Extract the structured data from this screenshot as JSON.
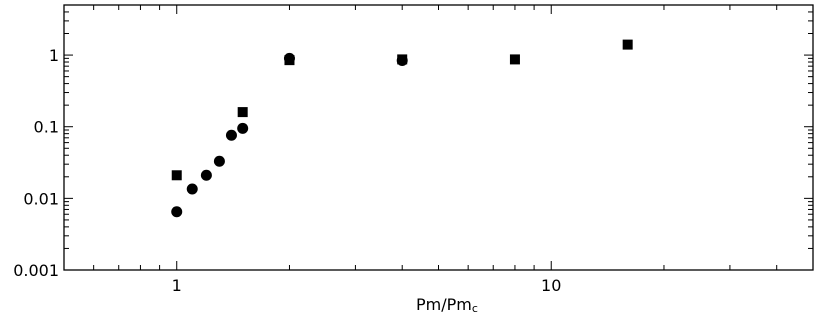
{
  "chart_data": {
    "type": "scatter",
    "title": "",
    "xlabel": {
      "main": "Pm/Pm",
      "sub": "c"
    },
    "ylabel": "",
    "xscale": "log",
    "yscale": "log",
    "xlim": [
      0.5,
      50
    ],
    "ylim": [
      0.001,
      5
    ],
    "x_ticks": [
      1,
      10
    ],
    "x_tick_labels": [
      "1",
      "10"
    ],
    "y_ticks": [
      0.001,
      0.01,
      0.1,
      1
    ],
    "y_tick_labels": [
      "0.001",
      "0.01",
      "0.1",
      "1"
    ],
    "grid": false,
    "series": [
      {
        "marker": "square",
        "color": "#000000",
        "points": [
          {
            "x": 1.0,
            "y": 0.021
          },
          {
            "x": 1.5,
            "y": 0.16
          },
          {
            "x": 2.0,
            "y": 0.85
          },
          {
            "x": 4.0,
            "y": 0.87
          },
          {
            "x": 8.0,
            "y": 0.87
          },
          {
            "x": 16.0,
            "y": 1.4
          }
        ]
      },
      {
        "marker": "circle",
        "color": "#000000",
        "points": [
          {
            "x": 1.0,
            "y": 0.0065
          },
          {
            "x": 1.1,
            "y": 0.0135
          },
          {
            "x": 1.2,
            "y": 0.021
          },
          {
            "x": 1.3,
            "y": 0.033
          },
          {
            "x": 1.4,
            "y": 0.076
          },
          {
            "x": 1.5,
            "y": 0.095
          },
          {
            "x": 2.0,
            "y": 0.9
          },
          {
            "x": 4.0,
            "y": 0.84
          }
        ]
      }
    ]
  }
}
